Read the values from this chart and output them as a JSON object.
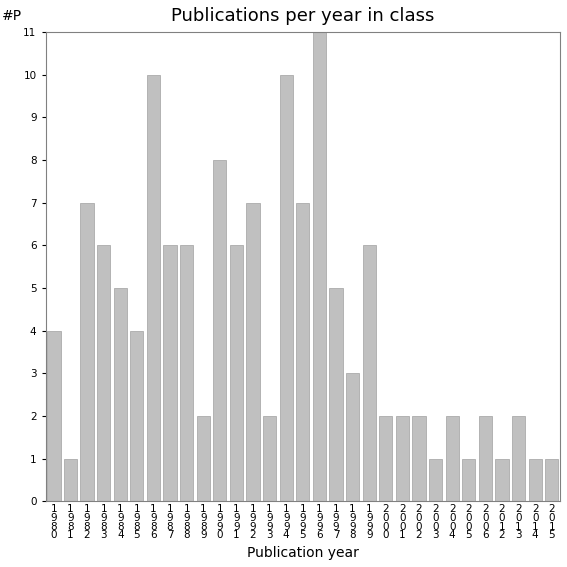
{
  "title": "Publications per year in class",
  "xlabel": "Publication year",
  "ylabel": "#P",
  "years": [
    "1980",
    "1981",
    "1982",
    "1983",
    "1984",
    "1985",
    "1986",
    "1987",
    "1988",
    "1989",
    "1990",
    "1991",
    "1992",
    "1993",
    "1994",
    "1995",
    "1996",
    "1997",
    "1998",
    "1999",
    "2000",
    "2001",
    "2002",
    "2003",
    "2004",
    "2005",
    "2006",
    "2012",
    "2013",
    "2014",
    "2015"
  ],
  "values": [
    4,
    1,
    7,
    6,
    5,
    4,
    10,
    6,
    6,
    2,
    8,
    6,
    7,
    2,
    10,
    7,
    11,
    5,
    3,
    6,
    2,
    2,
    2,
    1,
    2,
    1,
    2,
    1,
    2,
    1,
    1
  ],
  "bar_color": "#c0c0c0",
  "bar_edgecolor": "#a0a0a0",
  "ylim": [
    0,
    11
  ],
  "yticks": [
    0,
    1,
    2,
    3,
    4,
    5,
    6,
    7,
    8,
    9,
    10,
    11
  ],
  "background_color": "#ffffff",
  "title_fontsize": 13,
  "axis_fontsize": 10,
  "tick_fontsize": 7.5
}
